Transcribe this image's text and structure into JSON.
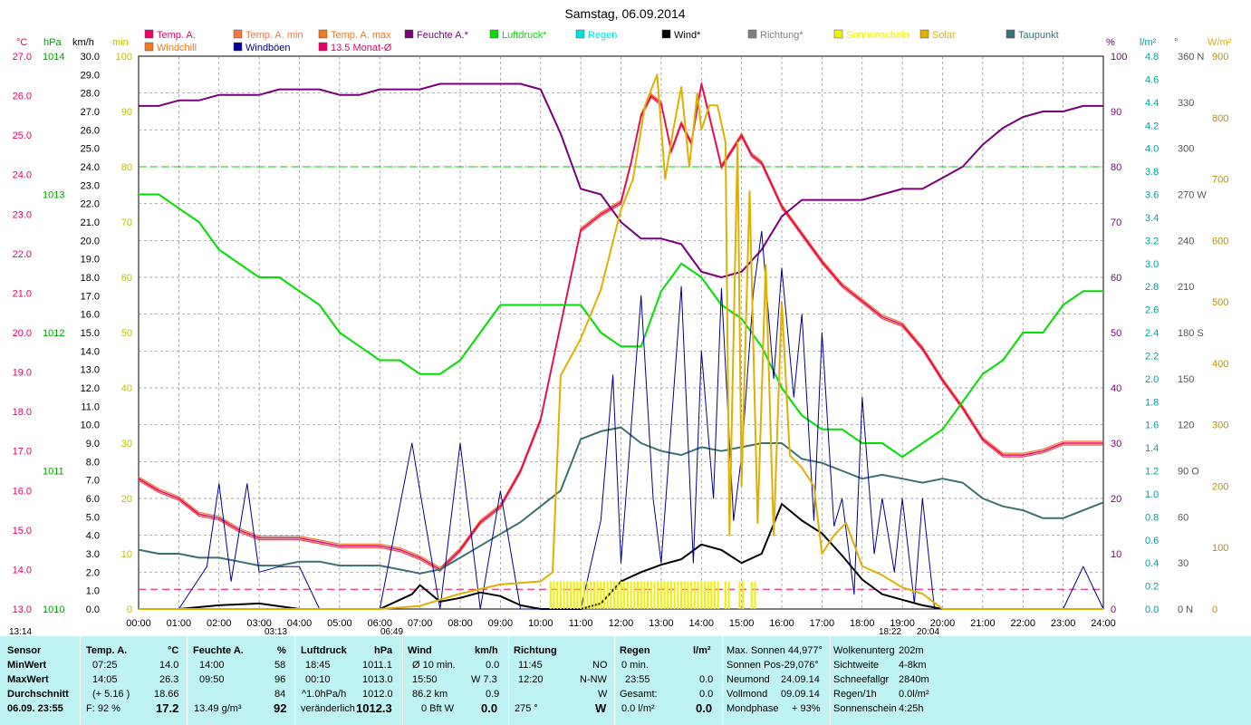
{
  "title": "Samstag, 06.09.2014",
  "legend": [
    {
      "label": "Temp. A.",
      "color": "#e8006a"
    },
    {
      "label": "Temp. A. min",
      "color": "#f07840"
    },
    {
      "label": "Temp. A. max",
      "color": "#f07820"
    },
    {
      "label": "Feuchte A.*",
      "color": "#7a007a"
    },
    {
      "label": "Luftdruck*",
      "color": "#00e000"
    },
    {
      "label": "Regen",
      "color": "#00e0e0"
    },
    {
      "label": "Wind*",
      "color": "#000000"
    },
    {
      "label": "Richtung*",
      "color": "#808080"
    },
    {
      "label": "Sonnenschein",
      "color": "#f0f000"
    },
    {
      "label": "Solar",
      "color": "#e0b000"
    },
    {
      "label": "Taupunkt",
      "color": "#3c7070"
    },
    {
      "label": "Windchill",
      "color": "#f07820"
    },
    {
      "label": "Windböen",
      "color": "#000090"
    },
    {
      "label": "13.5 Monat-Ø",
      "color": "#e8006a"
    }
  ],
  "units": {
    "temp": "°C",
    "press": "hPa",
    "wind": "km/h",
    "min": "min",
    "hum": "%",
    "rain": "l/m²",
    "dir": "°",
    "solar": "W/m²"
  },
  "axes": {
    "temp_ticks": [
      "27.0",
      "26.0",
      "25.0",
      "24.0",
      "23.0",
      "22.0",
      "21.0",
      "20.0",
      "19.0",
      "18.0",
      "17.0",
      "16.0",
      "15.0",
      "14.0",
      "13.0"
    ],
    "press_ticks": [
      "1014",
      "1013",
      "1012",
      "1011",
      "1010"
    ],
    "wind_ticks": [
      "30.0",
      "29.0",
      "28.0",
      "27.0",
      "26.0",
      "25.0",
      "24.0",
      "23.0",
      "22.0",
      "21.0",
      "20.0",
      "19.0",
      "18.0",
      "17.0",
      "16.0",
      "15.0",
      "14.0",
      "13.0",
      "12.0",
      "11.0",
      "10.0",
      "9.0",
      "8.0",
      "7.0",
      "6.0",
      "5.0",
      "4.0",
      "3.0",
      "2.0",
      "1.0",
      "0.0"
    ],
    "min_ticks": [
      "100",
      "90",
      "80",
      "70",
      "60",
      "50",
      "40",
      "30",
      "20",
      "10",
      "0"
    ],
    "hum_ticks": [
      "100",
      "90",
      "80",
      "70",
      "60",
      "50",
      "40",
      "30",
      "20",
      "10",
      "0"
    ],
    "rain_ticks": [
      "4.8",
      "4.6",
      "4.4",
      "4.2",
      "4.0",
      "3.8",
      "3.6",
      "3.4",
      "3.2",
      "3.0",
      "2.8",
      "2.6",
      "2.4",
      "2.2",
      "2.0",
      "1.8",
      "1.6",
      "1.4",
      "1.2",
      "1.0",
      "0.8",
      "0.6",
      "0.4",
      "0.2",
      "0.0"
    ],
    "dir_ticks": [
      "360 N",
      "330",
      "300",
      "270 W",
      "240",
      "210",
      "180 S",
      "150",
      "120",
      "90 O",
      "60",
      "30",
      "0 N"
    ],
    "solar_ticks": [
      "900",
      "800",
      "700",
      "600",
      "500",
      "400",
      "300",
      "200",
      "100",
      "0"
    ],
    "time_ticks": [
      "00:00",
      "01:00",
      "02:00",
      "03:00",
      "04:00",
      "05:00",
      "06:00",
      "07:00",
      "08:00",
      "09:00",
      "10:00",
      "11:00",
      "12:00",
      "13:00",
      "14:00",
      "15:00",
      "16:00",
      "17:00",
      "18:00",
      "19:00",
      "20:00",
      "21:00",
      "22:00",
      "23:00",
      "24:00"
    ]
  },
  "markers": {
    "now": "13:14",
    "t1": "03:13",
    "t2": "06:49",
    "t3": "18:22",
    "t4": "20:04"
  },
  "chart_data": {
    "type": "line",
    "title": "Samstag, 06.09.2014",
    "x_unit": "hours",
    "xlim": [
      0,
      24
    ],
    "series": [
      {
        "name": "Temp. A.",
        "unit": "°C",
        "ylim": [
          13,
          27
        ],
        "x": [
          0,
          0.5,
          1,
          1.5,
          2,
          2.5,
          3,
          3.5,
          4,
          4.5,
          5,
          5.5,
          6,
          6.5,
          7,
          7.5,
          8,
          8.5,
          9,
          9.5,
          10,
          10.5,
          11,
          11.5,
          12,
          12.25,
          12.5,
          12.75,
          13,
          13.25,
          13.5,
          13.75,
          14,
          14.1,
          14.5,
          15,
          15.25,
          15.5,
          16,
          16.5,
          17,
          17.5,
          18,
          18.5,
          19,
          19.5,
          20,
          20.5,
          21,
          21.5,
          22,
          22.5,
          23,
          23.5,
          24
        ],
        "values": [
          16.3,
          16.0,
          15.8,
          15.4,
          15.3,
          15.0,
          14.8,
          14.8,
          14.8,
          14.7,
          14.6,
          14.6,
          14.6,
          14.5,
          14.3,
          14.0,
          14.5,
          15.2,
          15.6,
          16.5,
          17.8,
          20.2,
          22.6,
          23.0,
          23.3,
          24.3,
          25.5,
          26.0,
          25.8,
          24.6,
          25.3,
          24.8,
          26.3,
          25.9,
          24.2,
          25.0,
          24.5,
          24.3,
          23.2,
          22.5,
          21.8,
          21.2,
          20.8,
          20.4,
          20.2,
          19.6,
          18.8,
          18.1,
          17.3,
          16.9,
          16.9,
          17.0,
          17.2,
          17.2,
          17.2
        ]
      },
      {
        "name": "Feuchte A.*",
        "unit": "%",
        "ylim": [
          0,
          100
        ],
        "x": [
          0,
          0.5,
          1,
          1.5,
          2,
          2.5,
          3,
          3.5,
          4,
          4.5,
          5,
          5.5,
          6,
          6.5,
          7,
          7.5,
          8,
          8.5,
          9,
          9.5,
          10,
          10.5,
          11,
          11.5,
          12,
          12.5,
          13,
          13.5,
          14,
          14.5,
          15,
          15.5,
          16,
          16.5,
          17,
          17.5,
          18,
          18.5,
          19,
          19.5,
          20,
          20.5,
          21,
          21.5,
          22,
          22.5,
          23,
          23.5,
          24
        ],
        "values": [
          91,
          91,
          92,
          92,
          93,
          93,
          93,
          94,
          94,
          94,
          93,
          93,
          94,
          94,
          94,
          95,
          95,
          95,
          95,
          95,
          94,
          86,
          76,
          75,
          70,
          67,
          67,
          66,
          61,
          60,
          61,
          65,
          71,
          74,
          74,
          74,
          74,
          75,
          76,
          76,
          78,
          80,
          84,
          87,
          89,
          90,
          90,
          91,
          91
        ]
      },
      {
        "name": "Luftdruck*",
        "unit": "hPa",
        "ylim": [
          1010,
          1014
        ],
        "x": [
          0,
          0.5,
          1,
          1.5,
          2,
          2.5,
          3,
          3.5,
          4,
          4.5,
          5,
          5.5,
          6,
          6.5,
          7,
          7.5,
          8,
          8.5,
          9,
          9.5,
          10,
          10.5,
          11,
          11.5,
          12,
          12.5,
          13,
          13.5,
          14,
          14.5,
          15,
          15.5,
          16,
          16.5,
          17,
          17.5,
          18,
          18.5,
          19,
          19.5,
          20,
          20.5,
          21,
          21.5,
          22,
          22.5,
          23,
          23.5,
          24
        ],
        "values": [
          1013.0,
          1013.0,
          1012.9,
          1012.8,
          1012.6,
          1012.5,
          1012.4,
          1012.4,
          1012.3,
          1012.2,
          1012.0,
          1011.9,
          1011.8,
          1011.8,
          1011.7,
          1011.7,
          1011.8,
          1012.0,
          1012.2,
          1012.2,
          1012.2,
          1012.2,
          1012.2,
          1012.0,
          1011.9,
          1011.9,
          1012.3,
          1012.5,
          1012.4,
          1012.2,
          1012.1,
          1011.9,
          1011.6,
          1011.4,
          1011.3,
          1011.3,
          1011.2,
          1011.2,
          1011.1,
          1011.2,
          1011.3,
          1011.5,
          1011.7,
          1011.8,
          1012.0,
          1012.0,
          1012.2,
          1012.3,
          1012.3
        ]
      },
      {
        "name": "Taupunkt",
        "unit": "°C",
        "ylim": [
          13,
          27
        ],
        "x": [
          0,
          0.5,
          1,
          1.5,
          2,
          2.5,
          3,
          3.5,
          4,
          4.5,
          5,
          5.5,
          6,
          6.5,
          7,
          7.5,
          8,
          8.5,
          9,
          9.5,
          10,
          10.5,
          11,
          11.5,
          12,
          12.5,
          13,
          13.5,
          14,
          14.5,
          15,
          15.5,
          16,
          16.5,
          17,
          17.5,
          18,
          18.5,
          19,
          19.5,
          20,
          20.5,
          21,
          21.5,
          22,
          22.5,
          23,
          23.5,
          24
        ],
        "values": [
          14.5,
          14.4,
          14.4,
          14.3,
          14.3,
          14.2,
          14.1,
          14.1,
          14.2,
          14.2,
          14.1,
          14.1,
          14.1,
          14.0,
          13.9,
          14.0,
          14.3,
          14.6,
          14.9,
          15.2,
          15.6,
          16.0,
          17.3,
          17.5,
          17.6,
          17.2,
          17.0,
          16.9,
          17.1,
          17.0,
          17.1,
          17.2,
          17.2,
          16.8,
          16.7,
          16.5,
          16.3,
          16.4,
          16.3,
          16.2,
          16.3,
          16.2,
          15.8,
          15.6,
          15.5,
          15.3,
          15.3,
          15.5,
          15.7
        ]
      },
      {
        "name": "Wind*",
        "unit": "km/h",
        "ylim": [
          0,
          30
        ],
        "x": [
          0,
          1,
          2,
          3,
          4,
          5,
          6,
          6.8,
          7,
          7.5,
          8,
          8.5,
          9,
          9.5,
          10,
          11,
          11.5,
          12,
          12.5,
          13,
          13.5,
          14,
          14.5,
          15,
          15.5,
          16,
          16.5,
          17,
          17.5,
          18,
          18.5,
          19,
          19.5,
          20,
          20.5,
          21,
          22,
          23,
          24
        ],
        "values": [
          0,
          0,
          0.2,
          0.3,
          0,
          0,
          0,
          0.8,
          1.3,
          0.4,
          0.6,
          0.9,
          0.7,
          0.2,
          0,
          0,
          0.3,
          1.5,
          2.0,
          2.4,
          2.7,
          3.5,
          3.2,
          2.5,
          3.0,
          5.7,
          4.8,
          4.1,
          2.9,
          1.6,
          0.8,
          0.5,
          0.2,
          0,
          0,
          0,
          0,
          0,
          0
        ]
      },
      {
        "name": "Windböen",
        "unit": "km/h",
        "ylim": [
          0,
          30
        ],
        "x": [
          0,
          1,
          1.7,
          2,
          2.3,
          2.7,
          3,
          3.5,
          4,
          4.5,
          5,
          5.5,
          6,
          6.8,
          7,
          7.5,
          8,
          8.5,
          9,
          9.5,
          10,
          10.5,
          11,
          11.5,
          11.8,
          12,
          12.5,
          12.8,
          13,
          13.5,
          13.8,
          14,
          14.3,
          14.5,
          14.8,
          15,
          15.3,
          15.5,
          15.8,
          16,
          16.3,
          16.5,
          16.8,
          17,
          17.3,
          17.5,
          17.8,
          18,
          18.3,
          18.5,
          18.8,
          19,
          19.3,
          19.5,
          19.8,
          20,
          20.5,
          21,
          22,
          23,
          23.5,
          24
        ],
        "values": [
          0,
          0,
          2.3,
          6.8,
          1.5,
          6.8,
          2.0,
          2.3,
          2.3,
          0,
          0,
          0,
          0,
          9.0,
          6.4,
          0,
          9.0,
          0,
          6.4,
          0,
          0,
          0,
          0,
          4.8,
          12.7,
          2.5,
          17.0,
          6.0,
          2.5,
          17.5,
          2.5,
          14.0,
          6.0,
          17.4,
          4.8,
          8.3,
          17.3,
          20.5,
          12.5,
          18.5,
          11.5,
          16.0,
          4.8,
          15.0,
          4.5,
          6.0,
          0.8,
          11.5,
          3.0,
          6.0,
          2.0,
          6.0,
          0.3,
          6.0,
          0,
          0,
          0,
          0,
          0,
          0,
          2.3,
          0
        ]
      },
      {
        "name": "Solar",
        "unit": "W/m²",
        "ylim": [
          0,
          900
        ],
        "x": [
          0,
          6,
          7,
          8,
          9,
          10,
          10.3,
          10.5,
          11,
          11.5,
          12,
          12.3,
          12.6,
          12.9,
          13.1,
          13.3,
          13.5,
          13.7,
          13.9,
          14.0,
          14.2,
          14.4,
          14.6,
          14.7,
          14.9,
          15.0,
          15.2,
          15.4,
          15.6,
          15.8,
          16.0,
          16.2,
          16.5,
          16.8,
          17.0,
          17.3,
          17.6,
          18.0,
          18.5,
          19.0,
          19.5,
          20.0,
          24
        ],
        "values": [
          0,
          0,
          5,
          25,
          40,
          45,
          60,
          380,
          440,
          520,
          650,
          700,
          820,
          870,
          700,
          780,
          850,
          720,
          840,
          780,
          820,
          820,
          760,
          120,
          760,
          200,
          680,
          140,
          560,
          120,
          500,
          250,
          230,
          200,
          90,
          120,
          140,
          70,
          55,
          35,
          25,
          0,
          0
        ]
      },
      {
        "name": "Sonnenschein",
        "unit": "min",
        "ylim": [
          0,
          100
        ],
        "x": [
          10.25,
          14.5,
          14.65,
          14.85,
          15.2,
          15.4
        ],
        "values": [
          5,
          5,
          5,
          5,
          5,
          5
        ]
      }
    ],
    "reference_lines": [
      {
        "series": "Feuchte A.*",
        "value": 80
      },
      {
        "series": "13.5 Monat-Ø",
        "value": 13.5
      }
    ]
  },
  "panel": {
    "col_sensor": {
      "h": "Sensor",
      "min": "MinWert",
      "max": "MaxWert",
      "avg": "Durchschnitt",
      "date": "06.09. 23:55"
    },
    "col_temp": {
      "h": "Temp. A.",
      "unit": "°C",
      "r1a": "07:25",
      "r1b": "14.0",
      "r2a": "14:05",
      "r2b": "26.3",
      "r3a": "(+ 5.16 )",
      "r3b": "18.66",
      "r4a": "F: 92 %",
      "r4b": "17.2"
    },
    "col_hum": {
      "h": "Feuchte A.",
      "unit": "%",
      "r1a": "14:00",
      "r1b": "58",
      "r2a": "09:50",
      "r2b": "96",
      "r3b": "84",
      "r4a": "13.49 g/m³",
      "r4b": "92"
    },
    "col_press": {
      "h": "Luftdruck",
      "unit": "hPa",
      "r1a": "18:45",
      "r1b": "1011.1",
      "r2a": "00:10",
      "r2b": "1013.0",
      "r3a": "^1.0hPa/h",
      "r3b": "1012.0",
      "r4a": "veränderlich",
      "r4b": "1012.3"
    },
    "col_wind": {
      "h": "Wind",
      "unit": "km/h",
      "r1a": "Ø 10 min.",
      "r1b": "0.0",
      "r2a": "15:50",
      "r2b": "W 7.3",
      "r3a": "86.2 km",
      "r3b": "0.9",
      "r4a": "0 Bft W",
      "r4b": "0.0"
    },
    "col_dir": {
      "h": "Richtung",
      "r1a": "11:45",
      "r1b": "NO",
      "r2a": "12:20",
      "r2b": "N-NW",
      "r3b": "W",
      "r4a": "275 °",
      "r4b": "W"
    },
    "col_rain": {
      "h": "Regen",
      "unit": "l/m²",
      "r1a": "0 min.",
      "r2a": "23:55",
      "r2b": "0.0",
      "r3a": "Gesamt:",
      "r3b": "0.0",
      "r4a": "0.0 l/m²",
      "r4b": "0.0"
    },
    "col_sun": {
      "r1": "Max. Sonnen 44,977°",
      "r2a": "Sonnen Pos",
      "r2b": "-29,076°",
      "r3a": "Neumond",
      "r3b": "24.09.14",
      "r4a": "Vollmond",
      "r4b": "09.09.14",
      "r5a": "Mondphase",
      "r5b": "+ 93%"
    },
    "col_misc": {
      "r1a": "Wolkenunterg",
      "r1b": "202m",
      "r2a": "Sichtweite",
      "r2b": "4-8km",
      "r3a": "Schneefallgr",
      "r3b": "2840m",
      "r4a": "Regen/1h",
      "r4b": "0.0l/m²",
      "r5a": "Sonnenschein",
      "r5b": "4:25h"
    }
  }
}
